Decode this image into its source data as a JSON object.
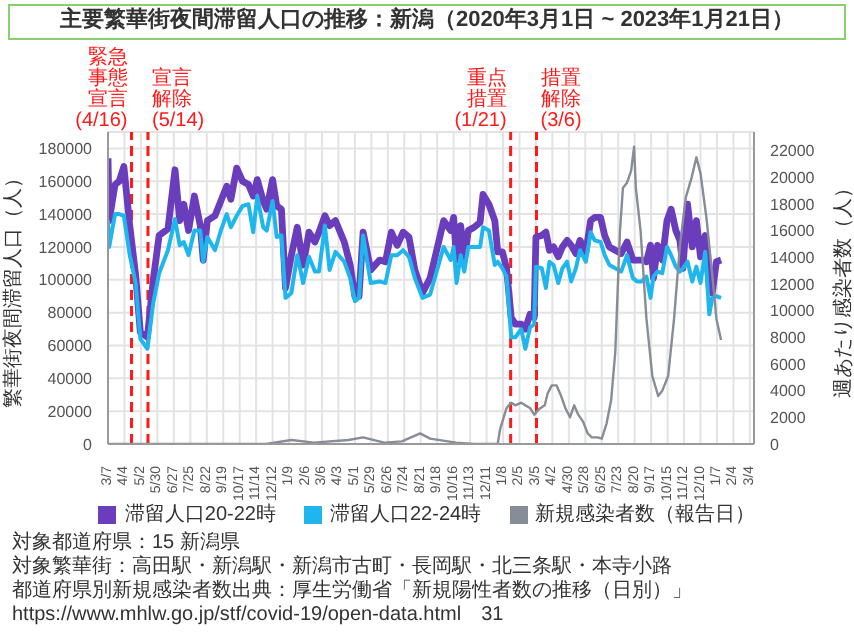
{
  "chart_data": {
    "type": "line",
    "title": "主要繁華街夜間滞留人口の推移：新潟（2020年3月1日 ~ 2023年1月21日）",
    "ylabel": "繁華街夜間滞留人口（人）",
    "y2label": "週あたり感染者数（人）",
    "x": [
      "2020-03-07",
      "2020-03-09",
      "2020-03-19",
      "2020-03-26",
      "2020-04-03",
      "2020-04-13",
      "2020-04-23",
      "2020-05-01",
      "2020-05-13",
      "2020-05-23",
      "2020-06-02",
      "2020-06-17",
      "2020-06-29",
      "2020-07-07",
      "2020-07-14",
      "2020-07-22",
      "2020-08-01",
      "2020-08-11",
      "2020-08-16",
      "2020-08-23",
      "2020-09-05",
      "2020-09-15",
      "2020-09-25",
      "2020-10-02",
      "2020-10-12",
      "2020-10-22",
      "2020-11-01",
      "2020-11-09",
      "2020-11-16",
      "2020-11-26",
      "2020-12-02",
      "2020-12-12",
      "2020-12-19",
      "2020-12-27",
      "2021-01-03",
      "2021-01-13",
      "2021-01-23",
      "2021-02-02",
      "2021-02-12",
      "2021-02-22",
      "2021-03-01",
      "2021-03-11",
      "2021-03-19",
      "2021-03-29",
      "2021-04-13",
      "2021-04-23",
      "2021-05-01",
      "2021-05-08",
      "2021-05-15",
      "2021-05-28",
      "2021-06-12",
      "2021-06-22",
      "2021-07-02",
      "2021-07-12",
      "2021-07-22",
      "2021-08-01",
      "2021-08-11",
      "2021-08-24",
      "2021-09-06",
      "2021-09-29",
      "2021-10-11",
      "2021-10-16",
      "2021-10-21",
      "2021-10-28",
      "2021-11-03",
      "2021-11-10",
      "2021-11-20",
      "2021-11-30",
      "2021-12-05",
      "2021-12-15",
      "2021-12-25",
      "2021-12-30",
      "2022-01-07",
      "2022-01-14",
      "2022-01-22",
      "2022-01-29",
      "2022-02-08",
      "2022-02-15",
      "2022-02-23",
      "2022-03-02",
      "2022-03-05",
      "2022-03-15",
      "2022-03-22",
      "2022-03-28",
      "2022-04-04",
      "2022-04-12",
      "2022-04-19",
      "2022-04-27",
      "2022-05-04",
      "2022-05-12",
      "2022-05-19",
      "2022-05-29",
      "2022-06-06",
      "2022-06-13",
      "2022-06-23",
      "2022-06-30",
      "2022-07-08",
      "2022-07-18",
      "2022-07-28",
      "2022-08-07",
      "2022-08-17",
      "2022-08-24",
      "2022-09-01",
      "2022-09-09",
      "2022-09-16",
      "2022-09-21",
      "2022-09-28",
      "2022-10-06",
      "2022-10-14",
      "2022-10-21",
      "2022-10-29",
      "2022-11-05",
      "2022-11-10",
      "2022-11-18",
      "2022-11-26",
      "2022-12-03",
      "2022-12-10",
      "2022-12-18",
      "2022-12-25",
      "2022-12-30",
      "2023-01-06",
      "2023-01-14"
    ],
    "series": [
      {
        "name": "滞留人口20-22時",
        "color": "#6a3dbd",
        "axis": "y",
        "values": [
          174000,
          136000,
          158000,
          160000,
          169000,
          133000,
          103000,
          68000,
          65000,
          100000,
          127000,
          131000,
          167000,
          136000,
          146000,
          130000,
          151000,
          133000,
          112000,
          136000,
          139000,
          148000,
          157000,
          149000,
          168000,
          160000,
          158000,
          151000,
          161000,
          148000,
          143000,
          161000,
          145000,
          143000,
          95000,
          115000,
          132000,
          109000,
          129000,
          123000,
          129000,
          139000,
          133000,
          136000,
          123000,
          109000,
          90000,
          90000,
          129000,
          106000,
          112000,
          111000,
          129000,
          121000,
          129000,
          126000,
          106000,
          92000,
          101000,
          136000,
          130000,
          138000,
          112000,
          133000,
          112000,
          130000,
          132000,
          135000,
          152000,
          146000,
          136000,
          117000,
          117000,
          107000,
          77000,
          73000,
          73000,
          70000,
          79000,
          77000,
          126000,
          127000,
          129000,
          118000,
          120000,
          114000,
          120000,
          124000,
          121000,
          116000,
          124000,
          117000,
          136000,
          138000,
          138000,
          127000,
          120000,
          118000,
          116000,
          123000,
          112000,
          112000,
          112000,
          111000,
          121000,
          101000,
          121000,
          112000,
          136000,
          143000,
          130000,
          124000,
          107000,
          146000,
          120000,
          136000,
          114000,
          127000,
          95000,
          92000,
          111000,
          112000
        ]
      },
      {
        "name": "滞留人口22-24時",
        "color": "#1fb6ee",
        "axis": "y",
        "values": [
          136000,
          120000,
          140000,
          140000,
          139000,
          115000,
          98000,
          64000,
          58000,
          86000,
          104000,
          118000,
          137000,
          121000,
          123000,
          115000,
          130000,
          130000,
          111000,
          126000,
          118000,
          130000,
          140000,
          132000,
          139000,
          145000,
          146000,
          129000,
          151000,
          132000,
          130000,
          148000,
          126000,
          127000,
          89000,
          92000,
          115000,
          98000,
          114000,
          105000,
          105000,
          133000,
          106000,
          117000,
          111000,
          101000,
          87000,
          89000,
          127000,
          98000,
          99000,
          98000,
          115000,
          115000,
          118000,
          114000,
          101000,
          89000,
          91000,
          120000,
          112000,
          120000,
          98000,
          115000,
          105000,
          120000,
          120000,
          120000,
          132000,
          130000,
          109000,
          111000,
          107000,
          102000,
          65000,
          65000,
          70000,
          58000,
          71000,
          73000,
          108000,
          107000,
          95000,
          111000,
          109000,
          98000,
          107000,
          111000,
          99000,
          107000,
          118000,
          111000,
          129000,
          124000,
          123000,
          115000,
          109000,
          107000,
          105000,
          115000,
          101000,
          99000,
          99000,
          102000,
          89000,
          102000,
          105000,
          104000,
          120000,
          115000,
          108000,
          105000,
          107000,
          111000,
          99000,
          108000,
          98000,
          117000,
          79000,
          89000,
          90000,
          89000
        ]
      },
      {
        "name": "新規感染者数（報告日）",
        "color": "#868d96",
        "axis": "y2",
        "x": [
          "2020-03-07",
          "2020-12-01",
          "2021-01-13",
          "2021-02-20",
          "2021-04-20",
          "2021-05-15",
          "2021-06-20",
          "2021-07-20",
          "2021-08-20",
          "2021-09-06",
          "2021-10-20",
          "2021-11-20",
          "2021-12-30",
          "2022-01-03",
          "2022-01-14",
          "2022-01-22",
          "2022-01-29",
          "2022-02-08",
          "2022-02-15",
          "2022-02-23",
          "2022-03-02",
          "2022-03-10",
          "2022-03-20",
          "2022-03-25",
          "2022-04-01",
          "2022-04-09",
          "2022-04-16",
          "2022-04-24",
          "2022-05-02",
          "2022-05-09",
          "2022-05-16",
          "2022-05-24",
          "2022-06-01",
          "2022-06-08",
          "2022-06-18",
          "2022-06-25",
          "2022-07-03",
          "2022-07-11",
          "2022-07-18",
          "2022-07-26",
          "2022-07-31",
          "2022-08-07",
          "2022-08-14",
          "2022-08-19",
          "2022-08-22",
          "2022-08-30",
          "2022-09-09",
          "2022-09-19",
          "2022-09-29",
          "2022-10-06",
          "2022-10-16",
          "2022-10-26",
          "2022-11-05",
          "2022-11-15",
          "2022-11-25",
          "2022-12-03",
          "2022-12-10",
          "2022-12-20",
          "2022-12-30",
          "2023-01-06",
          "2023-01-14"
        ],
        "values": [
          0,
          0,
          300,
          100,
          300,
          500,
          100,
          200,
          800,
          400,
          100,
          0,
          0,
          1100,
          2700,
          3100,
          2900,
          3100,
          2900,
          2700,
          2200,
          2600,
          2900,
          3800,
          4400,
          4400,
          3700,
          2700,
          2000,
          2900,
          2200,
          1700,
          800,
          500,
          500,
          400,
          1500,
          3300,
          6900,
          16000,
          19200,
          19600,
          20500,
          22300,
          19200,
          16000,
          9400,
          5100,
          3600,
          4000,
          5100,
          9400,
          14900,
          18500,
          20000,
          21500,
          20300,
          17000,
          12700,
          9400,
          7800
        ]
      }
    ],
    "xlim": [
      "2020-03-07",
      "2023-03-11"
    ],
    "xticks": [
      {
        "value": "2020-03-07",
        "label": "3/7"
      },
      {
        "value": "2020-04-04",
        "label": "4/4"
      },
      {
        "value": "2020-05-02",
        "label": "5/2"
      },
      {
        "value": "2020-05-30",
        "label": "5/30"
      },
      {
        "value": "2020-06-27",
        "label": "6/27"
      },
      {
        "value": "2020-07-25",
        "label": "7/25"
      },
      {
        "value": "2020-08-22",
        "label": "8/22"
      },
      {
        "value": "2020-09-19",
        "label": "9/19"
      },
      {
        "value": "2020-10-17",
        "label": "10/17"
      },
      {
        "value": "2020-11-14",
        "label": "11/14"
      },
      {
        "value": "2020-12-12",
        "label": "12/12"
      },
      {
        "value": "2021-01-09",
        "label": "1/9"
      },
      {
        "value": "2021-02-06",
        "label": "2/6"
      },
      {
        "value": "2021-03-06",
        "label": "3/6"
      },
      {
        "value": "2021-04-03",
        "label": "4/3"
      },
      {
        "value": "2021-05-01",
        "label": "5/1"
      },
      {
        "value": "2021-05-29",
        "label": "5/29"
      },
      {
        "value": "2021-06-26",
        "label": "6/26"
      },
      {
        "value": "2021-07-24",
        "label": "7/24"
      },
      {
        "value": "2021-08-21",
        "label": "8/21"
      },
      {
        "value": "2021-09-18",
        "label": "9/18"
      },
      {
        "value": "2021-10-16",
        "label": "10/16"
      },
      {
        "value": "2021-11-13",
        "label": "11/13"
      },
      {
        "value": "2021-12-11",
        "label": "12/11"
      },
      {
        "value": "2022-01-08",
        "label": "1/8"
      },
      {
        "value": "2022-02-05",
        "label": "2/5"
      },
      {
        "value": "2022-03-05",
        "label": "3/5"
      },
      {
        "value": "2022-04-02",
        "label": "4/2"
      },
      {
        "value": "2022-04-30",
        "label": "4/30"
      },
      {
        "value": "2022-05-28",
        "label": "5/28"
      },
      {
        "value": "2022-06-25",
        "label": "6/25"
      },
      {
        "value": "2022-07-23",
        "label": "7/23"
      },
      {
        "value": "2022-08-20",
        "label": "8/20"
      },
      {
        "value": "2022-09-17",
        "label": "9/17"
      },
      {
        "value": "2022-10-15",
        "label": "10/15"
      },
      {
        "value": "2022-11-12",
        "label": "11/12"
      },
      {
        "value": "2022-12-10",
        "label": "12/10"
      },
      {
        "value": "2023-01-07",
        "label": "1/7"
      },
      {
        "value": "2023-02-04",
        "label": "2/4"
      },
      {
        "value": "2023-03-04",
        "label": "3/4"
      }
    ],
    "ylim": [
      0,
      190000
    ],
    "yticks": [
      0,
      20000,
      40000,
      60000,
      80000,
      100000,
      120000,
      140000,
      160000,
      180000
    ],
    "y2lim": [
      0,
      23400
    ],
    "y2ticks": [
      0,
      2000,
      4000,
      6000,
      8000,
      10000,
      12000,
      14000,
      16000,
      18000,
      20000,
      22000
    ],
    "ref_lines": [
      {
        "axis": "x",
        "value": "2020-04-16",
        "label": "緊急事態宣言(4/16)",
        "color": "#ff1a1a",
        "line_style": "dashed"
      },
      {
        "axis": "x",
        "value": "2020-05-14",
        "label": "宣言解除(5/14)",
        "color": "#ff1a1a",
        "line_style": "dashed"
      },
      {
        "axis": "x",
        "value": "2022-01-21",
        "label": "重点措置(1/21)",
        "color": "#ff1a1a",
        "line_style": "dashed"
      },
      {
        "axis": "x",
        "value": "2022-03-06",
        "label": "措置解除(3/6)",
        "color": "#ff1a1a",
        "line_style": "dashed"
      }
    ],
    "grid": true,
    "legend": "bottom",
    "annotations": [
      "対象都道府県：15 新潟県",
      "対象繁華街：高田駅・新潟駅・新潟市古町・長岡駅・北三条駅・本寺小路",
      "都道府県別新規感染者数出典：厚生労働省「新規陽性者数の推移（日別）」",
      "https://www.mhlw.go.jp/stf/covid-19/open-data.html",
      "31"
    ]
  }
}
